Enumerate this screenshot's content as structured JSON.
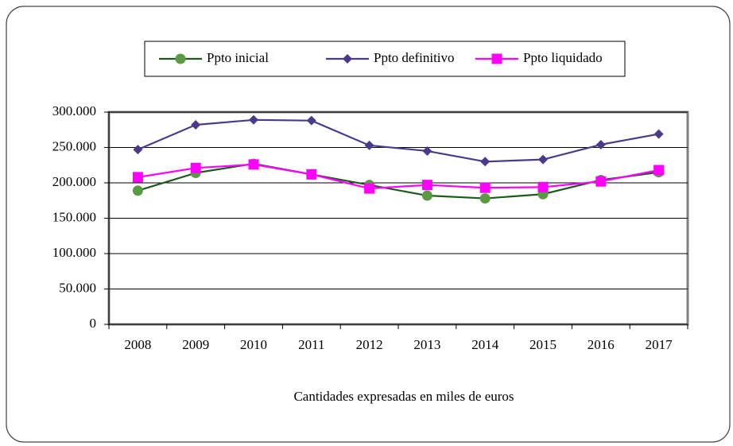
{
  "chart_data": {
    "type": "line",
    "categories": [
      "2008",
      "2009",
      "2010",
      "2011",
      "2012",
      "2013",
      "2014",
      "2015",
      "2016",
      "2017"
    ],
    "series": [
      {
        "name": "Ppto inicial",
        "color": "#1d5a1d",
        "marker_color": "#5a9a45",
        "marker": "circle",
        "values": [
          189000,
          214000,
          227000,
          212000,
          197000,
          182000,
          178000,
          184000,
          204000,
          215000
        ]
      },
      {
        "name": "Ppto definitivo",
        "color": "#4b3a8c",
        "marker_color": "#4b3a8c",
        "marker": "diamond",
        "values": [
          247000,
          282000,
          289000,
          288000,
          253000,
          245000,
          230000,
          233000,
          254000,
          269000
        ]
      },
      {
        "name": "Ppto liquidado",
        "color": "#ff00ff",
        "marker_color": "#ff00ff",
        "marker": "square",
        "values": [
          208000,
          221000,
          226000,
          212000,
          192000,
          197000,
          193000,
          194000,
          202000,
          218000
        ]
      }
    ],
    "ylim": [
      0,
      300000
    ],
    "yticks": [
      0,
      {
        "value": 50000,
        "label": "50.000"
      },
      {
        "value": 100000,
        "label": "100.000"
      },
      {
        "value": 150000,
        "label": "150.000"
      },
      {
        "value": 200000,
        "label": "200.000"
      },
      {
        "value": 250000,
        "label": "250.000"
      },
      {
        "value": 300000,
        "label": "300.000"
      }
    ],
    "grid": true,
    "legend": "top",
    "caption": "Cantidades expresadas en miles  de euros"
  }
}
